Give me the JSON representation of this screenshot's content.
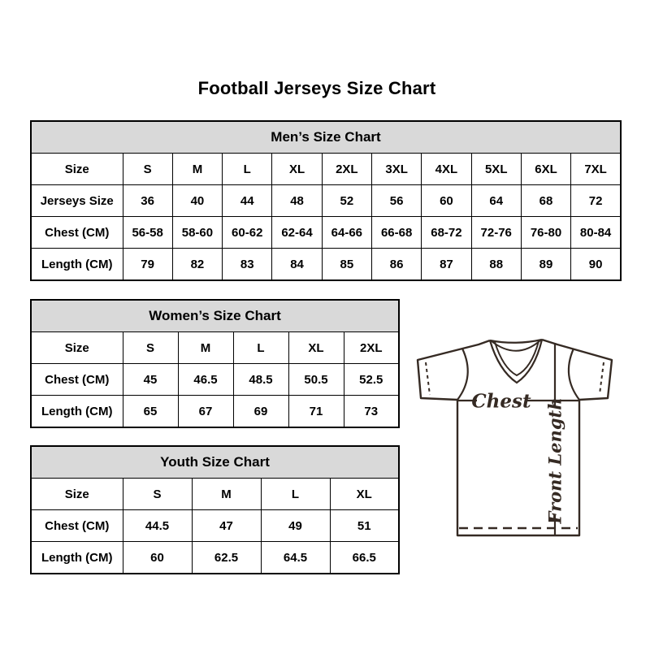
{
  "page": {
    "title": "Football Jerseys Size Chart"
  },
  "tables": {
    "men": {
      "header": "Men’s Size Chart",
      "rows": [
        [
          "Size",
          "S",
          "M",
          "L",
          "XL",
          "2XL",
          "3XL",
          "4XL",
          "5XL",
          "6XL",
          "7XL"
        ],
        [
          "Jerseys Size",
          "36",
          "40",
          "44",
          "48",
          "52",
          "56",
          "60",
          "64",
          "68",
          "72"
        ],
        [
          "Chest (CM)",
          "56-58",
          "58-60",
          "60-62",
          "62-64",
          "64-66",
          "66-68",
          "68-72",
          "72-76",
          "76-80",
          "80-84"
        ],
        [
          "Length (CM)",
          "79",
          "82",
          "83",
          "84",
          "85",
          "86",
          "87",
          "88",
          "89",
          "90"
        ]
      ]
    },
    "women": {
      "header": "Women’s Size Chart",
      "rows": [
        [
          "Size",
          "S",
          "M",
          "L",
          "XL",
          "2XL"
        ],
        [
          "Chest (CM)",
          "45",
          "46.5",
          "48.5",
          "50.5",
          "52.5"
        ],
        [
          "Length (CM)",
          "65",
          "67",
          "69",
          "71",
          "73"
        ]
      ]
    },
    "youth": {
      "header": "Youth Size Chart",
      "rows": [
        [
          "Size",
          "S",
          "M",
          "L",
          "XL"
        ],
        [
          "Chest (CM)",
          "44.5",
          "47",
          "49",
          "51"
        ],
        [
          "Length (CM)",
          "60",
          "62.5",
          "64.5",
          "66.5"
        ]
      ]
    }
  },
  "diagram": {
    "chest_label": "Chest",
    "front_length_label": "Front Length"
  },
  "colors": {
    "header_bg": "#d9d9d9",
    "border": "#000000",
    "diagram_stroke": "#352a23",
    "page_bg": "#ffffff"
  }
}
